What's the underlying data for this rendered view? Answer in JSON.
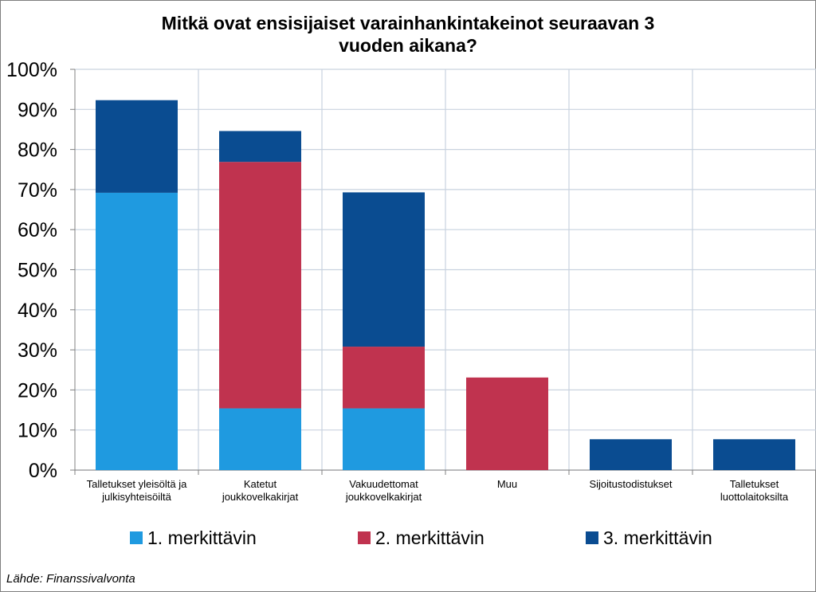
{
  "chart_data": {
    "type": "bar",
    "stacked": true,
    "title": "Mitkä ovat ensisijaiset varainhankintakeinot seuraavan 3 vuoden aikana?",
    "title_lines": [
      "Mitkä ovat ensisijaiset varainhankintakeinot seuraavan 3",
      "vuoden aikana?"
    ],
    "categories": [
      [
        "Talletukset yleisöltä ja",
        "julkisyhteisöiltä"
      ],
      [
        "Katetut",
        "joukkovelkakirjat"
      ],
      [
        "Vakuudettomat",
        "joukkovelkakirjat"
      ],
      [
        "Muu"
      ],
      [
        "Sijoitustodistukset"
      ],
      [
        "Talletukset",
        "luottolaitoksilta"
      ]
    ],
    "series": [
      {
        "name": "1. merkittävin",
        "color": "#1f9ae0",
        "values": [
          69.2,
          15.4,
          15.4,
          0,
          0,
          0
        ]
      },
      {
        "name": "2. merkittävin",
        "color": "#c0334f",
        "values": [
          0,
          61.5,
          15.4,
          23.1,
          0,
          0
        ]
      },
      {
        "name": "3. merkittävin",
        "color": "#0a4c91",
        "values": [
          23.1,
          7.7,
          38.5,
          0,
          7.7,
          7.7
        ]
      }
    ],
    "ylim": [
      0,
      100
    ],
    "yticks": [
      "0%",
      "10%",
      "20%",
      "30%",
      "40%",
      "50%",
      "60%",
      "70%",
      "80%",
      "90%",
      "100%"
    ],
    "grid": true,
    "legend_position": "bottom"
  },
  "source": "Lähde: Finanssivalvonta"
}
